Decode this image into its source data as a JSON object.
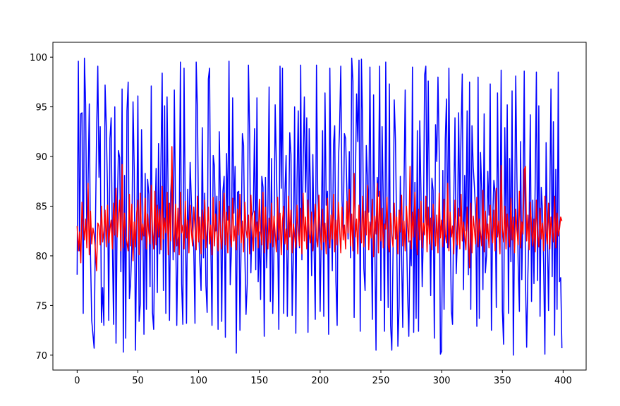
{
  "chart_data": {
    "type": "line",
    "x": [
      0,
      1,
      2,
      3,
      4,
      5,
      6,
      7,
      8,
      9,
      10,
      11,
      12,
      13,
      14,
      15,
      16,
      17,
      18,
      19,
      20,
      21,
      22,
      23,
      24,
      25,
      26,
      27,
      28,
      29,
      30,
      31,
      32,
      33,
      34,
      35,
      36,
      37,
      38,
      39,
      40,
      41,
      42,
      43,
      44,
      45,
      46,
      47,
      48,
      49,
      50,
      51,
      52,
      53,
      54,
      55,
      56,
      57,
      58,
      59,
      60,
      61,
      62,
      63,
      64,
      65,
      66,
      67,
      68,
      69,
      70,
      71,
      72,
      73,
      74,
      75,
      76,
      77,
      78,
      79,
      80,
      81,
      82,
      83,
      84,
      85,
      86,
      87,
      88,
      89,
      90,
      91,
      92,
      93,
      94,
      95,
      96,
      97,
      98,
      99,
      100,
      101,
      102,
      103,
      104,
      105,
      106,
      107,
      108,
      109,
      110,
      111,
      112,
      113,
      114,
      115,
      116,
      117,
      118,
      119,
      120,
      121,
      122,
      123,
      124,
      125,
      126,
      127,
      128,
      129,
      130,
      131,
      132,
      133,
      134,
      135,
      136,
      137,
      138,
      139,
      140,
      141,
      142,
      143,
      144,
      145,
      146,
      147,
      148,
      149,
      150,
      151,
      152,
      153,
      154,
      155,
      156,
      157,
      158,
      159,
      160,
      161,
      162,
      163,
      164,
      165,
      166,
      167,
      168,
      169,
      170,
      171,
      172,
      173,
      174,
      175,
      176,
      177,
      178,
      179,
      180,
      181,
      182,
      183,
      184,
      185,
      186,
      187,
      188,
      189,
      190,
      191,
      192,
      193,
      194,
      195,
      196,
      197,
      198,
      199,
      200,
      201,
      202,
      203,
      204,
      205,
      206,
      207,
      208,
      209,
      210,
      211,
      212,
      213,
      214,
      215,
      216,
      217,
      218,
      219,
      220,
      221,
      222,
      223,
      224,
      225,
      226,
      227,
      228,
      229,
      230,
      231,
      232,
      233,
      234,
      235,
      236,
      237,
      238,
      239,
      240,
      241,
      242,
      243,
      244,
      245,
      246,
      247,
      248,
      249,
      250,
      251,
      252,
      253,
      254,
      255,
      256,
      257,
      258,
      259,
      260,
      261,
      262,
      263,
      264,
      265,
      266,
      267,
      268,
      269,
      270,
      271,
      272,
      273,
      274,
      275,
      276,
      277,
      278,
      279,
      280,
      281,
      282,
      283,
      284,
      285,
      286,
      287,
      288,
      289,
      290,
      291,
      292,
      293,
      294,
      295,
      296,
      297,
      298,
      299,
      300,
      301,
      302,
      303,
      304,
      305,
      306,
      307,
      308,
      309,
      310,
      311,
      312,
      313,
      314,
      315,
      316,
      317,
      318,
      319,
      320,
      321,
      322,
      323,
      324,
      325,
      326,
      327,
      328,
      329,
      330,
      331,
      332,
      333,
      334,
      335,
      336,
      337,
      338,
      339,
      340,
      341,
      342,
      343,
      344,
      345,
      346,
      347,
      348,
      349,
      350,
      351,
      352,
      353,
      354,
      355,
      356,
      357,
      358,
      359,
      360,
      361,
      362,
      363,
      364,
      365,
      366,
      367,
      368,
      369,
      370,
      371,
      372,
      373,
      374,
      375,
      376,
      377,
      378,
      379,
      380,
      381,
      382,
      383,
      384,
      385,
      386,
      387,
      388,
      389,
      390,
      391,
      392,
      393,
      394,
      395,
      396,
      397,
      398,
      399
    ],
    "series": [
      {
        "color": "#0000ff",
        "values": [
          78.1,
          99.6,
          80.5,
          94.3,
          94.4,
          74.2,
          99.9,
          95.2,
          81.2,
          87.3,
          95.3,
          80.1,
          73.5,
          72.1,
          70.7,
          82.4,
          92.2,
          99.1,
          87.9,
          93.0,
          73.3,
          76.8,
          73.0,
          97.2,
          93.1,
          86.5,
          73.5,
          91.8,
          93.9,
          81.2,
          73.1,
          95.0,
          71.2,
          84.5,
          90.6,
          89.9,
          78.4,
          96.8,
          70.3,
          88.1,
          71.7,
          94.6,
          97.5,
          75.7,
          77.2,
          81.1,
          95.5,
          88.6,
          70.5,
          81.3,
          96.1,
          73.4,
          75.2,
          92.7,
          85.0,
          72.1,
          88.3,
          74.6,
          87.7,
          86.2,
          76.9,
          97.1,
          74.3,
          72.6,
          82.9,
          88.8,
          76.3,
          91.3,
          80.2,
          89.6,
          98.4,
          76.5,
          95.1,
          74.2,
          96.0,
          84.9,
          73.5,
          86.3,
          88.8,
          79.6,
          96.7,
          84.1,
          73.0,
          81.6,
          82.3,
          99.5,
          77.2,
          73.1,
          98.9,
          84.0,
          73.2,
          86.7,
          80.4,
          89.4,
          85.6,
          82.5,
          80.7,
          73.2,
          99.5,
          94.8,
          82.7,
          79.4,
          76.5,
          92.9,
          79.8,
          86.3,
          77.0,
          74.3,
          97.8,
          98.9,
          81.2,
          73.0,
          90.1,
          89.0,
          82.5,
          86.0,
          72.6,
          92.5,
          85.3,
          73.4,
          86.5,
          88.0,
          71.8,
          90.3,
          83.6,
          99.6,
          77.1,
          80.5,
          95.9,
          84.3,
          89.0,
          70.2,
          86.4,
          86.5,
          72.5,
          81.6,
          92.3,
          91.1,
          80.5,
          74.1,
          77.2,
          99.2,
          92.2,
          78.3,
          84.0,
          84.5,
          92.8,
          78.6,
          95.9,
          77.4,
          82.4,
          75.6,
          88.0,
          86.9,
          71.9,
          87.9,
          78.8,
          84.6,
          97.0,
          75.4,
          89.8,
          74.2,
          80.7,
          95.2,
          89.1,
          82.7,
          72.6,
          99.1,
          86.8,
          98.9,
          74.2,
          86.3,
          90.1,
          73.9,
          82.5,
          92.4,
          90.2,
          74.0,
          80.3,
          95.0,
          72.2,
          87.6,
          94.6,
          80.8,
          99.2,
          79.6,
          89.2,
          96.0,
          86.4,
          93.9,
          72.3,
          92.8,
          86.7,
          78.0,
          90.2,
          81.0,
          73.6,
          99.2,
          86.5,
          83.2,
          74.4,
          83.2,
          92.6,
          73.9,
          96.4,
          85.1,
          86.5,
          72.1,
          98.9,
          86.0,
          78.5,
          91.2,
          93.1,
          77.4,
          73.0,
          89.3,
          92.8,
          99.1,
          85.6,
          82.0,
          92.3,
          91.8,
          86.6,
          81.7,
          90.5,
          79.8,
          99.9,
          97.6,
          73.8,
          87.2,
          96.3,
          91.5,
          99.7,
          72.4,
          99.8,
          93.1,
          78.7,
          76.5,
          91.1,
          87.5,
          84.4,
          99.0,
          82.7,
          73.6,
          96.2,
          81.4,
          70.5,
          87.9,
          86.0,
          99.1,
          75.5,
          93.0,
          85.4,
          72.4,
          99.5,
          85.7,
          74.8,
          97.3,
          73.0,
          70.5,
          80.3,
          95.7,
          91.7,
          82.4,
          70.9,
          74.9,
          88.0,
          80.4,
          72.8,
          86.6,
          96.7,
          82.9,
          76.2,
          71.9,
          81.5,
          79.0,
          99.0,
          72.3,
          87.4,
          73.7,
          92.6,
          72.4,
          93.6,
          86.4,
          76.9,
          82.3,
          98.2,
          99.1,
          83.1,
          97.6,
          84.6,
          76.0,
          87.8,
          86.6,
          71.7,
          93.2,
          89.5,
          98.0,
          90.4,
          70.1,
          70.4,
          88.6,
          74.6,
          91.7,
          95.8,
          80.8,
          98.9,
          83.6,
          74.5,
          73.1,
          85.6,
          93.9,
          78.2,
          81.8,
          94.4,
          84.0,
          92.6,
          98.3,
          76.6,
          88.1,
          82.5,
          94.6,
          78.1,
          97.5,
          74.6,
          93.1,
          89.0,
          86.9,
          84.2,
          72.9,
          98.0,
          73.7,
          90.4,
          86.7,
          76.6,
          94.3,
          78.3,
          80.1,
          88.5,
          84.1,
          97.3,
          72.5,
          83.6,
          87.6,
          86.4,
          74.8,
          96.4,
          82.8,
          80.3,
          98.7,
          74.5,
          71.1,
          92.9,
          82.6,
          95.2,
          74.2,
          89.8,
          79.4,
          96.6,
          70.0,
          82.4,
          98.1,
          87.7,
          79.2,
          74.4,
          91.5,
          77.6,
          85.4,
          98.6,
          77.8,
          70.8,
          78.1,
          83.0,
          94.2,
          75.4,
          85.6,
          77.2,
          87.2,
          98.5,
          77.5,
          95.1,
          73.9,
          86.9,
          84.6,
          78.8,
          70.1,
          91.4,
          82.4,
          74.5,
          85.0,
          96.8,
          77.9,
          93.5,
          72.0,
          88.7,
          74.6,
          98.5,
          77.4,
          77.8,
          70.7
        ]
      },
      {
        "color": "#ff0000",
        "values": [
          83.0,
          80.5,
          82.4,
          79.3,
          85.4,
          83.3,
          81.6,
          83.7,
          80.8,
          87.3,
          80.1,
          84.5,
          81.2,
          82.8,
          82.1,
          80.6,
          78.5,
          83.3,
          83.0,
          81.1,
          85.0,
          81.4,
          82.5,
          84.6,
          80.9,
          85.1,
          81.3,
          82.7,
          83.6,
          80.7,
          85.3,
          82.1,
          86.8,
          81.9,
          84.0,
          85.6,
          80.5,
          89.2,
          80.8,
          84.3,
          82.0,
          81.3,
          80.5,
          86.2,
          81.0,
          85.2,
          79.5,
          83.4,
          80.9,
          84.3,
          85.6,
          80.1,
          86.3,
          81.6,
          83.2,
          82.0,
          85.8,
          80.7,
          84.2,
          82.3,
          81.2,
          87.1,
          82.5,
          80.7,
          86.5,
          81.1,
          85.1,
          81.9,
          84.7,
          80.6,
          87.0,
          81.7,
          83.8,
          82.3,
          86.4,
          80.1,
          85.3,
          81.5,
          91.0,
          82.7,
          80.4,
          85.2,
          81.0,
          84.8,
          80.1,
          86.4,
          82.3,
          83.1,
          80.7,
          85.5,
          81.8,
          83.6,
          80.3,
          85.1,
          82.5,
          81.0,
          84.9,
          82.9,
          80.6,
          86.0,
          81.4,
          83.9,
          80.2,
          84.6,
          81.7,
          85.6,
          80.8,
          82.6,
          84.9,
          81.2,
          83.1,
          80.1,
          85.9,
          81.0,
          84.2,
          82.4,
          80.5,
          85.5,
          82.0,
          80.7,
          83.7,
          86.3,
          81.1,
          84.4,
          80.3,
          85.0,
          82.2,
          80.9,
          85.8,
          81.5,
          83.0,
          80.6,
          84.7,
          82.1,
          86.2,
          81.3,
          83.5,
          80.4,
          85.4,
          82.6,
          81.8,
          84.1,
          80.2,
          86.1,
          82.8,
          80.5,
          84.5,
          81.9,
          83.4,
          80.8,
          85.7,
          82.5,
          81.1,
          86.4,
          80.3,
          84.9,
          82.1,
          80.7,
          83.8,
          81.3,
          85.3,
          80.9,
          84.0,
          82.2,
          80.4,
          85.9,
          81.6,
          84.3,
          80.1,
          83.5,
          85.0,
          81.2,
          82.7,
          80.6,
          86.0,
          81.9,
          84.6,
          80.3,
          83.2,
          82.0,
          80.8,
          85.1,
          82.4,
          81.0,
          84.8,
          80.2,
          86.3,
          81.5,
          83.9,
          80.7,
          85.6,
          82.2,
          81.3,
          84.4,
          80.5,
          83.0,
          85.2,
          81.8,
          80.9,
          86.1,
          82.5,
          80.6,
          84.7,
          81.4,
          83.3,
          80.2,
          85.8,
          82.0,
          80.8,
          84.1,
          81.7,
          86.2,
          80.4,
          83.6,
          81.1,
          85.4,
          82.8,
          80.3,
          84.9,
          81.6,
          83.1,
          80.7,
          85.5,
          82.3,
          86.7,
          81.0,
          84.2,
          80.5,
          88.3,
          81.9,
          83.7,
          80.2,
          85.1,
          82.6,
          81.3,
          86.0,
          80.9,
          84.5,
          82.1,
          87.1,
          80.6,
          83.4,
          81.8,
          85.7,
          79.9,
          84.0,
          82.2,
          87.3,
          80.3,
          86.5,
          81.5,
          84.8,
          80.8,
          83.2,
          82.7,
          85.9,
          81.1,
          80.4,
          84.3,
          82.0,
          80.9,
          85.3,
          81.7,
          83.9,
          80.2,
          84.6,
          82.4,
          86.1,
          81.0,
          83.5,
          80.5,
          85.0,
          82.9,
          81.4,
          89.0,
          80.7,
          84.4,
          81.9,
          86.4,
          82.3,
          80.1,
          84.7,
          81.6,
          85.5,
          80.8,
          83.3,
          82.1,
          86.0,
          80.4,
          84.9,
          81.2,
          83.8,
          80.6,
          85.2,
          82.5,
          81.0,
          84.1,
          80.3,
          86.3,
          81.8,
          83.6,
          80.9,
          85.7,
          82.2,
          81.3,
          87.3,
          80.5,
          84.4,
          81.9,
          83.0,
          80.2,
          85.6,
          82.7,
          81.1,
          84.8,
          80.7,
          86.2,
          81.5,
          83.4,
          82.0,
          80.6,
          84.9,
          81.8,
          78.8,
          85.3,
          80.3,
          84.0,
          82.6,
          81.2,
          85.9,
          80.9,
          83.7,
          82.3,
          81.0,
          86.6,
          80.4,
          84.5,
          81.7,
          83.2,
          80.8,
          85.1,
          82.4,
          81.3,
          84.6,
          80.5,
          86.8,
          81.9,
          83.5,
          80.2,
          89.1,
          82.7,
          81.4,
          85.0,
          80.7,
          84.2,
          82.0,
          80.9,
          85.8,
          81.6,
          83.9,
          80.3,
          84.7,
          82.5,
          81.1,
          86.5,
          80.8,
          83.4,
          82.2,
          88.7,
          89.0,
          81.5,
          84.1,
          80.6,
          85.4,
          82.8,
          81.0,
          83.7,
          80.4,
          85.6,
          82.1,
          80.9,
          84.8,
          81.7,
          83.3,
          80.5,
          86.0,
          82.4,
          81.2,
          85.3,
          80.7,
          83.9,
          82.6,
          81.4,
          86.0,
          80.8,
          84.3,
          82.0,
          82.7,
          83.9,
          83.5
        ]
      }
    ],
    "xlim": [
      -19.95,
      418.95
    ],
    "xticks": [
      0,
      50,
      100,
      150,
      200,
      250,
      300,
      350,
      400
    ],
    "ylim": [
      68.5,
      101.5
    ],
    "yticks": [
      70,
      75,
      80,
      85,
      90,
      95,
      100
    ]
  }
}
